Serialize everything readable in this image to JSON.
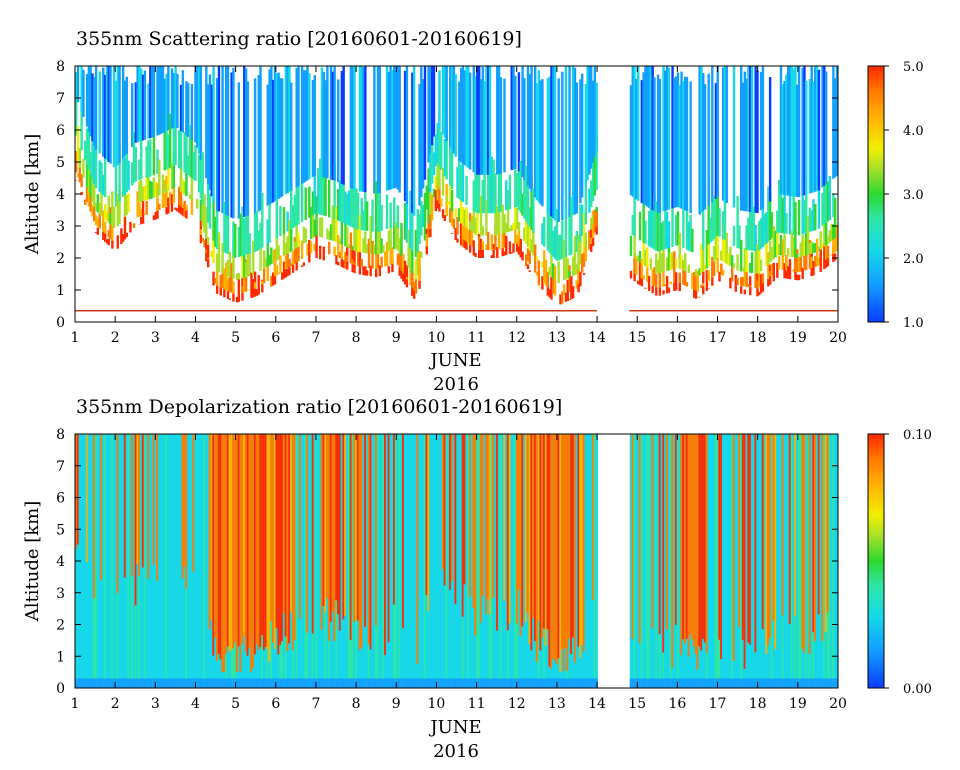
{
  "chart_data": [
    {
      "type": "heatmap",
      "title": "355nm Scattering ratio [20160601-20160619]",
      "ylabel": "Altitude [km]",
      "xlabel": "JUNE",
      "xlabel2": "2016",
      "x_ticks": [
        "1",
        "2",
        "3",
        "4",
        "5",
        "6",
        "7",
        "8",
        "9",
        "10",
        "11",
        "12",
        "13",
        "14",
        "15",
        "16",
        "17",
        "18",
        "19",
        "20"
      ],
      "y_ticks": [
        "0",
        "1",
        "2",
        "3",
        "4",
        "5",
        "6",
        "7",
        "8"
      ],
      "xlim": [
        1,
        20
      ],
      "ylim": [
        0,
        8
      ],
      "data_gap": [
        14.0,
        14.8
      ],
      "colorbar": {
        "min": 1.0,
        "max": 5.0,
        "labels": [
          "5.0",
          "4.0",
          "3.0",
          "2.0",
          "1.0"
        ]
      },
      "feature_profile": {
        "days": [
          1.0,
          1.5,
          2.0,
          2.5,
          3.0,
          3.5,
          4.0,
          4.5,
          5.0,
          5.5,
          6.0,
          6.5,
          7.0,
          7.5,
          8.0,
          8.5,
          9.0,
          9.5,
          10.0,
          10.5,
          11.0,
          11.5,
          12.0,
          12.5,
          13.0,
          13.5,
          14.0,
          14.8,
          15.0,
          15.5,
          16.0,
          16.5,
          17.0,
          17.5,
          18.0,
          18.5,
          19.0,
          19.5,
          20.0
        ],
        "cloud_base_km": [
          4.5,
          2.8,
          2.2,
          3.0,
          3.2,
          3.5,
          3.0,
          0.9,
          0.6,
          0.8,
          1.2,
          1.6,
          2.0,
          1.8,
          1.5,
          1.4,
          1.6,
          0.6,
          3.6,
          2.5,
          2.0,
          2.0,
          2.2,
          1.2,
          0.5,
          0.8,
          2.8,
          1.4,
          1.2,
          0.8,
          1.0,
          0.7,
          1.3,
          0.9,
          0.8,
          1.4,
          1.3,
          1.5,
          2.0
        ]
      }
    },
    {
      "type": "heatmap",
      "title": "355nm Depolarization ratio [20160601-20160619]",
      "ylabel": "Altitude [km]",
      "xlabel": "JUNE",
      "xlabel2": "2016",
      "x_ticks": [
        "1",
        "2",
        "3",
        "4",
        "5",
        "6",
        "7",
        "8",
        "9",
        "10",
        "11",
        "12",
        "13",
        "14",
        "15",
        "16",
        "17",
        "18",
        "19",
        "20"
      ],
      "y_ticks": [
        "0",
        "1",
        "2",
        "3",
        "4",
        "5",
        "6",
        "7",
        "8"
      ],
      "xlim": [
        1,
        20
      ],
      "ylim": [
        0,
        8
      ],
      "data_gap": [
        14.0,
        14.8
      ],
      "colorbar": {
        "min": 0.0,
        "max": 0.1,
        "labels": [
          "0.10",
          "0.00"
        ]
      }
    }
  ]
}
